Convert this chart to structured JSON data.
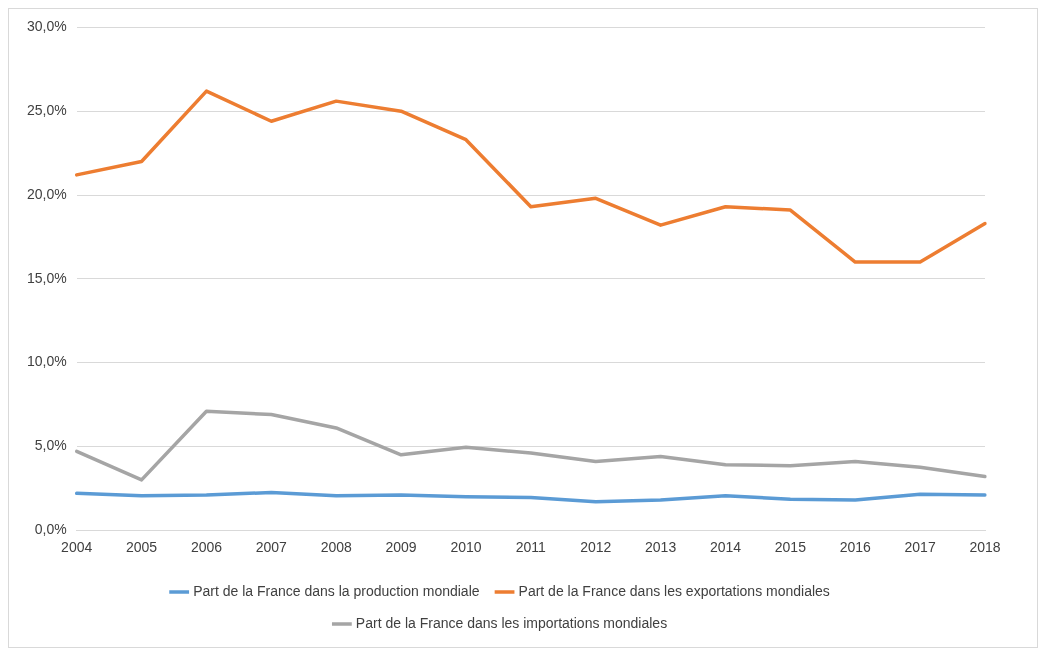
{
  "chart_data": {
    "type": "line",
    "categories": [
      "2004",
      "2005",
      "2006",
      "2007",
      "2008",
      "2009",
      "2010",
      "2011",
      "2012",
      "2013",
      "2014",
      "2015",
      "2016",
      "2017",
      "2018"
    ],
    "series": [
      {
        "name": "Part de la France dans la production mondiale",
        "color": "#5b9bd5",
        "values": [
          2.2,
          2.05,
          2.1,
          2.25,
          2.05,
          2.1,
          2.0,
          1.95,
          1.7,
          1.8,
          2.05,
          1.85,
          1.8,
          2.15,
          2.1
        ]
      },
      {
        "name": "Part de la France dans les exportations mondiales",
        "color": "#ed7d31",
        "values": [
          21.2,
          22.0,
          26.2,
          24.4,
          25.6,
          25.0,
          23.3,
          19.3,
          19.8,
          18.2,
          19.3,
          19.1,
          16.0,
          16.0,
          18.3
        ]
      },
      {
        "name": "Part de la France dans les importations mondiales",
        "color": "#a5a5a5",
        "values": [
          4.7,
          3.0,
          7.1,
          6.9,
          6.1,
          4.5,
          4.95,
          4.6,
          4.1,
          4.4,
          3.9,
          3.85,
          4.1,
          3.75,
          3.2
        ]
      }
    ],
    "ylim": [
      0,
      30
    ],
    "yticks": [
      {
        "value": 0,
        "label": "0,0%"
      },
      {
        "value": 5,
        "label": "5,0%"
      },
      {
        "value": 10,
        "label": "10,0%"
      },
      {
        "value": 15,
        "label": "15,0%"
      },
      {
        "value": 20,
        "label": "20,0%"
      },
      {
        "value": 25,
        "label": "25,0%"
      },
      {
        "value": 30,
        "label": "30,0%"
      }
    ],
    "grid": "y",
    "legend": "bottom",
    "marker": "none",
    "line_style": "solid"
  }
}
